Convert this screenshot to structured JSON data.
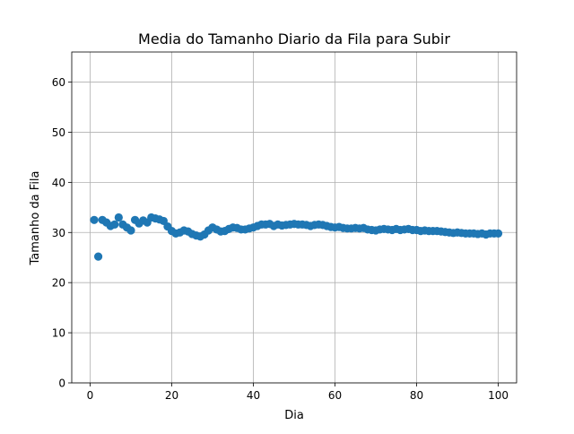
{
  "chart_data": {
    "type": "scatter",
    "title": "Media do Tamanho Diario da Fila para Subir",
    "xlabel": "Dia",
    "ylabel": "Tamanho da Fila",
    "xlim": [
      -4.5,
      104.5
    ],
    "ylim": [
      0,
      66
    ],
    "xticks": [
      0,
      20,
      40,
      60,
      80,
      100
    ],
    "yticks": [
      0,
      10,
      20,
      30,
      40,
      50,
      60
    ],
    "grid": true,
    "marker_color": "#1f77b4",
    "series": [
      {
        "x": [
          1,
          2,
          3,
          4,
          5,
          6,
          7,
          8,
          9,
          10,
          11,
          12,
          13,
          14,
          15,
          16,
          17,
          18,
          19,
          20,
          21,
          22,
          23,
          24,
          25,
          26,
          27,
          28,
          29,
          30,
          31,
          32,
          33,
          34,
          35,
          36,
          37,
          38,
          39,
          40,
          41,
          42,
          43,
          44,
          45,
          46,
          47,
          48,
          49,
          50,
          51,
          52,
          53,
          54,
          55,
          56,
          57,
          58,
          59,
          60,
          61,
          62,
          63,
          64,
          65,
          66,
          67,
          68,
          69,
          70,
          71,
          72,
          73,
          74,
          75,
          76,
          77,
          78,
          79,
          80,
          81,
          82,
          83,
          84,
          85,
          86,
          87,
          88,
          89,
          90,
          91,
          92,
          93,
          94,
          95,
          96,
          97,
          98,
          99,
          100
        ],
        "y": [
          32.5,
          25.2,
          32.5,
          32.0,
          31.3,
          31.6,
          33.0,
          31.6,
          31.0,
          30.4,
          32.5,
          31.8,
          32.4,
          32.0,
          33.0,
          32.8,
          32.6,
          32.3,
          31.2,
          30.3,
          29.8,
          30.0,
          30.4,
          30.2,
          29.7,
          29.4,
          29.2,
          29.6,
          30.4,
          31.0,
          30.6,
          30.2,
          30.3,
          30.7,
          31.0,
          30.9,
          30.6,
          30.6,
          30.8,
          31.0,
          31.3,
          31.6,
          31.6,
          31.7,
          31.3,
          31.6,
          31.4,
          31.5,
          31.6,
          31.7,
          31.6,
          31.6,
          31.5,
          31.3,
          31.5,
          31.6,
          31.5,
          31.3,
          31.1,
          31.0,
          31.1,
          30.9,
          30.8,
          30.8,
          30.9,
          30.8,
          30.9,
          30.6,
          30.5,
          30.4,
          30.6,
          30.7,
          30.6,
          30.5,
          30.7,
          30.5,
          30.6,
          30.7,
          30.5,
          30.5,
          30.3,
          30.4,
          30.3,
          30.3,
          30.3,
          30.2,
          30.1,
          30.0,
          29.9,
          30.0,
          29.9,
          29.8,
          29.8,
          29.8,
          29.7,
          29.8,
          29.6,
          29.8,
          29.8,
          29.8
        ]
      }
    ]
  }
}
